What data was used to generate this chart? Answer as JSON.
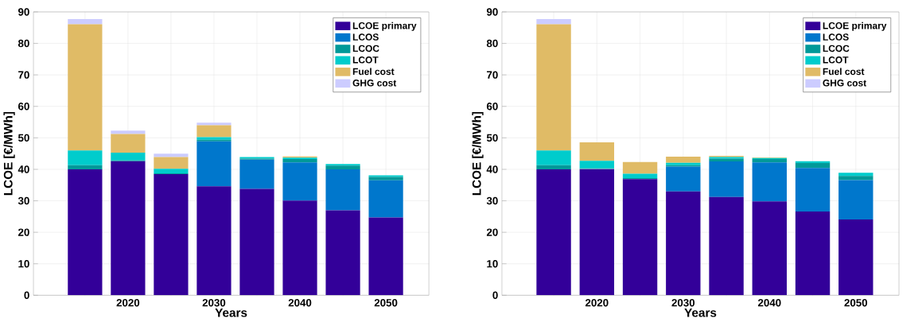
{
  "chart_data": [
    {
      "type": "bar",
      "stacked": true,
      "xlabel": "Years",
      "ylabel": "LCOE [€/MWh]",
      "x": [
        2015,
        2020,
        2025,
        2030,
        2035,
        2040,
        2045,
        2050
      ],
      "series": [
        {
          "name": "LCOE primary",
          "color": "#330099",
          "values": [
            40,
            42.6,
            38.5,
            34.6,
            33.8,
            30.1,
            27.0,
            24.7
          ]
        },
        {
          "name": "LCOS",
          "color": "#0077cc",
          "values": [
            0,
            0,
            0,
            14.3,
            9.3,
            12.1,
            13,
            11.8
          ]
        },
        {
          "name": "LCOC",
          "color": "#009999",
          "values": [
            1.3,
            0.2,
            0.2,
            0.5,
            0.3,
            1.1,
            1.2,
            1.1
          ]
        },
        {
          "name": "LCOT",
          "color": "#00cccc",
          "values": [
            4.7,
            2.5,
            1.5,
            0.8,
            0.5,
            0.4,
            0.5,
            0.5
          ]
        },
        {
          "name": "Fuel cost",
          "color": "#e0bb66",
          "values": [
            40.1,
            5.9,
            3.7,
            3.8,
            0,
            0.4,
            0,
            0
          ]
        },
        {
          "name": "GHG cost",
          "color": "#ccccff",
          "values": [
            1.6,
            1.1,
            1.1,
            0.8,
            0,
            0,
            0,
            0
          ]
        }
      ],
      "xlim": [
        2009,
        2055
      ],
      "ylim": [
        0,
        90
      ],
      "xticks": [
        {
          "value": 2015,
          "label": null
        },
        2020,
        {
          "value": 2025,
          "label": null
        },
        2030,
        {
          "value": 2035,
          "label": null
        },
        2040,
        {
          "value": 2045,
          "label": null
        },
        2050
      ],
      "yticks": [
        0,
        10,
        20,
        30,
        40,
        50,
        60,
        70,
        80,
        90
      ],
      "grid": true,
      "legend": "top right"
    },
    {
      "type": "bar",
      "stacked": true,
      "xlabel": "Years",
      "ylabel": "LCOE [€/MWh]",
      "x": [
        2015,
        2020,
        2025,
        2030,
        2035,
        2040,
        2045,
        2050
      ],
      "series": [
        {
          "name": "LCOE primary",
          "color": "#330099",
          "values": [
            40,
            40.1,
            36.9,
            33.0,
            31.2,
            29.8,
            26.6,
            24.1
          ]
        },
        {
          "name": "LCOS",
          "color": "#0077cc",
          "values": [
            0,
            0,
            0,
            7.9,
            11.3,
            12.4,
            13.8,
            12.5
          ]
        },
        {
          "name": "LCOC",
          "color": "#009999",
          "values": [
            1.3,
            0.2,
            0.3,
            0.4,
            0.9,
            1.1,
            1.6,
            1.3
          ]
        },
        {
          "name": "LCOT",
          "color": "#00cccc",
          "values": [
            4.7,
            2.4,
            1.4,
            0.8,
            0.5,
            0.3,
            0.6,
            1.0
          ]
        },
        {
          "name": "Fuel cost",
          "color": "#e0bb66",
          "values": [
            40.1,
            5.9,
            3.7,
            1.9,
            0.4,
            0.2,
            0,
            0
          ]
        },
        {
          "name": "GHG cost",
          "color": "#ccccff",
          "values": [
            1.6,
            0,
            0,
            0,
            0,
            0,
            0,
            0
          ]
        }
      ],
      "xlim": [
        2009,
        2055
      ],
      "ylim": [
        0,
        90
      ],
      "xticks": [
        {
          "value": 2015,
          "label": null
        },
        2020,
        {
          "value": 2025,
          "label": null
        },
        2030,
        {
          "value": 2035,
          "label": null
        },
        2040,
        {
          "value": 2045,
          "label": null
        },
        2050
      ],
      "yticks": [
        0,
        10,
        20,
        30,
        40,
        50,
        60,
        70,
        80,
        90
      ],
      "grid": true,
      "legend": "top right"
    }
  ]
}
